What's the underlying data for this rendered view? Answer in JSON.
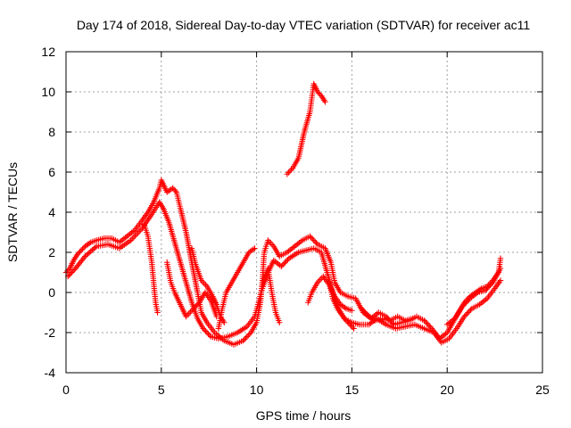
{
  "chart_data": {
    "type": "scatter",
    "title": "Day 174 of 2018, Sidereal Day-to-day VTEC variation (SDTVAR) for receiver ac11",
    "xlabel": "GPS time / hours",
    "ylabel": "SDTVAR / TECUs",
    "xlim": [
      0,
      25
    ],
    "ylim": [
      -4,
      12
    ],
    "xticks": [
      "0",
      "5",
      "10",
      "15",
      "20",
      "25"
    ],
    "yticks": [
      "-4",
      "-2",
      "0",
      "2",
      "4",
      "6",
      "8",
      "10",
      "12"
    ],
    "grid": true,
    "marker": "+",
    "series": [
      {
        "name": "SDTVAR",
        "color": "#ff0000",
        "segments": [
          [
            [
              0.0,
              1.0
            ],
            [
              0.2,
              1.2
            ],
            [
              0.4,
              1.6
            ],
            [
              0.6,
              1.9
            ],
            [
              0.8,
              2.1
            ],
            [
              1.0,
              2.3
            ],
            [
              1.3,
              2.5
            ],
            [
              1.6,
              2.6
            ],
            [
              2.0,
              2.7
            ],
            [
              2.4,
              2.7
            ],
            [
              2.8,
              2.5
            ],
            [
              3.2,
              2.8
            ],
            [
              3.6,
              3.1
            ],
            [
              4.0,
              3.6
            ],
            [
              4.3,
              4.0
            ],
            [
              4.6,
              4.5
            ],
            [
              4.9,
              5.2
            ],
            [
              5.0,
              5.6
            ],
            [
              5.3,
              5.0
            ],
            [
              5.6,
              5.2
            ],
            [
              5.8,
              5.0
            ],
            [
              6.0,
              4.2
            ],
            [
              6.3,
              3.0
            ],
            [
              6.6,
              1.5
            ],
            [
              6.9,
              0.0
            ],
            [
              7.1,
              -1.0
            ],
            [
              7.4,
              -1.5
            ],
            [
              7.8,
              -2.0
            ],
            [
              8.3,
              -2.4
            ],
            [
              8.8,
              -2.6
            ],
            [
              9.3,
              -2.4
            ],
            [
              9.7,
              -2.0
            ],
            [
              10.0,
              -1.5
            ],
            [
              10.2,
              -0.5
            ],
            [
              10.3,
              0.5
            ],
            [
              10.4,
              2.0
            ],
            [
              10.6,
              2.6
            ],
            [
              10.9,
              2.3
            ],
            [
              11.2,
              1.8
            ],
            [
              11.6,
              2.0
            ],
            [
              12.0,
              2.3
            ],
            [
              12.4,
              2.6
            ],
            [
              12.8,
              2.8
            ],
            [
              13.2,
              2.4
            ],
            [
              13.6,
              2.2
            ],
            [
              13.9,
              1.5
            ],
            [
              14.1,
              0.5
            ],
            [
              14.4,
              0.0
            ],
            [
              14.8,
              -0.2
            ],
            [
              15.2,
              -0.3
            ],
            [
              15.6,
              -1.0
            ],
            [
              16.0,
              -1.3
            ],
            [
              16.4,
              -1.0
            ],
            [
              16.8,
              -1.2
            ],
            [
              17.2,
              -1.6
            ],
            [
              17.6,
              -1.5
            ],
            [
              18.0,
              -1.4
            ],
            [
              18.4,
              -1.2
            ],
            [
              18.8,
              -1.4
            ],
            [
              19.2,
              -1.8
            ],
            [
              19.6,
              -2.3
            ],
            [
              20.0,
              -2.0
            ],
            [
              20.3,
              -1.5
            ],
            [
              20.6,
              -1.0
            ],
            [
              20.9,
              -0.5
            ],
            [
              21.2,
              -0.2
            ],
            [
              21.5,
              0.0
            ],
            [
              21.8,
              0.2
            ],
            [
              22.1,
              0.3
            ],
            [
              22.4,
              0.6
            ],
            [
              22.7,
              1.0
            ],
            [
              22.8,
              1.7
            ]
          ],
          [
            [
              0.1,
              0.8
            ],
            [
              0.5,
              1.2
            ],
            [
              1.0,
              1.8
            ],
            [
              1.6,
              2.3
            ],
            [
              2.2,
              2.4
            ],
            [
              2.8,
              2.2
            ],
            [
              3.4,
              2.6
            ],
            [
              4.0,
              3.2
            ],
            [
              4.5,
              3.9
            ],
            [
              4.9,
              4.5
            ],
            [
              5.1,
              4.2
            ],
            [
              5.4,
              3.5
            ],
            [
              5.7,
              2.5
            ],
            [
              6.0,
              1.5
            ],
            [
              6.3,
              0.5
            ],
            [
              6.6,
              -0.5
            ],
            [
              6.9,
              -1.3
            ],
            [
              7.2,
              -1.8
            ],
            [
              7.6,
              -2.2
            ],
            [
              8.0,
              -2.3
            ],
            [
              8.5,
              -2.2
            ],
            [
              9.0,
              -2.0
            ],
            [
              9.5,
              -1.7
            ],
            [
              9.9,
              -1.2
            ],
            [
              10.1,
              -0.5
            ],
            [
              10.3,
              0.2
            ],
            [
              10.6,
              1.0
            ],
            [
              10.9,
              1.6
            ],
            [
              11.3,
              1.3
            ],
            [
              11.7,
              1.7
            ],
            [
              12.2,
              2.0
            ],
            [
              12.6,
              2.1
            ],
            [
              13.0,
              2.2
            ],
            [
              13.4,
              2.0
            ],
            [
              13.7,
              1.0
            ],
            [
              14.0,
              0.0
            ],
            [
              14.3,
              -0.8
            ],
            [
              14.6,
              -1.3
            ],
            [
              15.0,
              -1.5
            ],
            [
              15.4,
              -1.6
            ],
            [
              15.9,
              -1.6
            ],
            [
              16.3,
              -1.3
            ],
            [
              16.8,
              -1.6
            ],
            [
              17.3,
              -1.8
            ],
            [
              17.8,
              -1.7
            ],
            [
              18.3,
              -1.6
            ],
            [
              18.8,
              -1.8
            ],
            [
              19.3,
              -2.0
            ],
            [
              19.7,
              -2.5
            ],
            [
              20.1,
              -2.3
            ],
            [
              20.5,
              -1.8
            ],
            [
              20.9,
              -1.2
            ],
            [
              21.3,
              -0.8
            ],
            [
              21.7,
              -0.6
            ],
            [
              22.1,
              -0.3
            ],
            [
              22.5,
              0.2
            ],
            [
              22.8,
              0.6
            ]
          ],
          [
            [
              4.1,
              3.4
            ],
            [
              4.3,
              2.8
            ],
            [
              4.5,
              1.5
            ],
            [
              4.6,
              0.5
            ],
            [
              4.7,
              -0.5
            ],
            [
              4.8,
              -1.0
            ]
          ],
          [
            [
              5.3,
              1.5
            ],
            [
              5.5,
              0.5
            ],
            [
              5.7,
              0.0
            ],
            [
              6.0,
              -0.6
            ],
            [
              6.3,
              -1.2
            ],
            [
              6.6,
              -0.9
            ],
            [
              7.0,
              -0.5
            ],
            [
              7.3,
              0.0
            ],
            [
              7.6,
              -0.4
            ],
            [
              7.9,
              -1.2
            ]
          ],
          [
            [
              6.6,
              2.2
            ],
            [
              6.8,
              1.4
            ],
            [
              7.1,
              0.6
            ],
            [
              7.4,
              0.3
            ],
            [
              7.7,
              -0.2
            ],
            [
              7.9,
              -0.6
            ],
            [
              8.1,
              -1.2
            ],
            [
              8.3,
              -1.5
            ]
          ],
          [
            [
              8.0,
              -1.8
            ],
            [
              8.2,
              -0.8
            ],
            [
              8.4,
              0.0
            ],
            [
              8.7,
              0.5
            ],
            [
              9.0,
              1.0
            ],
            [
              9.3,
              1.5
            ],
            [
              9.6,
              2.0
            ],
            [
              9.9,
              2.2
            ]
          ],
          [
            [
              10.1,
              -1.0
            ],
            [
              10.3,
              0.4
            ],
            [
              10.6,
              1.2
            ],
            [
              10.8,
              0.0
            ],
            [
              11.0,
              -1.0
            ],
            [
              11.2,
              -1.5
            ]
          ],
          [
            [
              11.6,
              5.9
            ],
            [
              11.9,
              6.2
            ],
            [
              12.2,
              6.7
            ],
            [
              12.5,
              8.0
            ],
            [
              12.8,
              9.0
            ],
            [
              13.0,
              10.4
            ],
            [
              13.2,
              10.0
            ],
            [
              13.4,
              9.8
            ],
            [
              13.6,
              9.5
            ]
          ],
          [
            [
              12.7,
              -0.5
            ],
            [
              12.9,
              0.0
            ],
            [
              13.2,
              0.5
            ],
            [
              13.5,
              0.8
            ],
            [
              13.8,
              0.4
            ],
            [
              14.1,
              -0.2
            ],
            [
              14.4,
              -0.6
            ],
            [
              14.7,
              -0.8
            ],
            [
              15.0,
              -0.9
            ]
          ],
          [
            [
              13.8,
              0.5
            ],
            [
              14.0,
              -0.3
            ],
            [
              14.3,
              -0.9
            ],
            [
              14.7,
              -1.4
            ],
            [
              15.1,
              -1.8
            ]
          ],
          [
            [
              15.5,
              -0.8
            ],
            [
              15.8,
              -1.1
            ],
            [
              16.2,
              -1.4
            ],
            [
              16.6,
              -1.3
            ],
            [
              17.0,
              -1.4
            ],
            [
              17.4,
              -1.2
            ],
            [
              17.8,
              -1.4
            ],
            [
              18.2,
              -1.3
            ]
          ],
          [
            [
              20.0,
              -1.6
            ],
            [
              20.4,
              -1.3
            ],
            [
              20.8,
              -0.7
            ],
            [
              21.2,
              -0.3
            ],
            [
              21.6,
              0.0
            ],
            [
              22.0,
              0.1
            ],
            [
              22.4,
              0.5
            ],
            [
              22.8,
              1.2
            ]
          ]
        ]
      }
    ]
  }
}
